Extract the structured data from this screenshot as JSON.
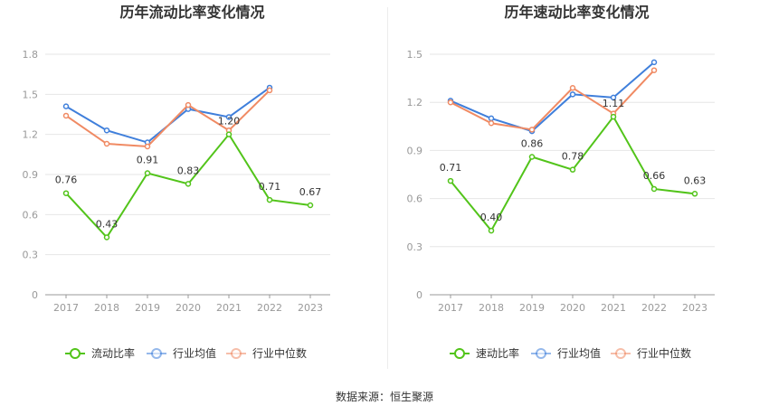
{
  "footer": {
    "source": "数据来源：恒生聚源"
  },
  "legend_labels": [],
  "chart_data": [
    {
      "type": "line",
      "title": "历年流动比率变化情况",
      "xlabel": "",
      "ylabel": "",
      "categories": [
        "2017",
        "2018",
        "2019",
        "2020",
        "2021",
        "2022",
        "2023"
      ],
      "ylim": [
        0,
        1.8
      ],
      "yticks": [
        "0",
        "0.3",
        "0.6",
        "0.9",
        "1.2",
        "1.5",
        "1.8"
      ],
      "grid": true,
      "legend_position": "bottom",
      "series": [
        {
          "name": "流动比率",
          "color": "#52c41a",
          "labeled": true,
          "values": [
            0.76,
            0.43,
            0.91,
            0.83,
            1.2,
            0.71,
            0.67
          ],
          "labels": [
            "0.76",
            "0.43",
            "0.91",
            "0.83",
            "1.20",
            "0.71",
            "0.67"
          ]
        },
        {
          "name": "行业均值",
          "color": "#3f7fdb",
          "labeled": false,
          "values": [
            1.41,
            1.23,
            1.14,
            1.39,
            1.33,
            1.55,
            null
          ]
        },
        {
          "name": "行业中位数",
          "color": "#f08a63",
          "labeled": false,
          "values": [
            1.34,
            1.13,
            1.11,
            1.42,
            1.23,
            1.53,
            null
          ]
        }
      ]
    },
    {
      "type": "line",
      "title": "历年速动比率变化情况",
      "xlabel": "",
      "ylabel": "",
      "categories": [
        "2017",
        "2018",
        "2019",
        "2020",
        "2021",
        "2022",
        "2023"
      ],
      "ylim": [
        0,
        1.5
      ],
      "yticks": [
        "0",
        "0.3",
        "0.6",
        "0.9",
        "1.2",
        "1.5"
      ],
      "grid": true,
      "legend_position": "bottom",
      "series": [
        {
          "name": "速动比率",
          "color": "#52c41a",
          "labeled": true,
          "values": [
            0.71,
            0.4,
            0.86,
            0.78,
            1.11,
            0.66,
            0.63
          ],
          "labels": [
            "0.71",
            "0.40",
            "0.86",
            "0.78",
            "1.11",
            "0.66",
            "0.63"
          ]
        },
        {
          "name": "行业均值",
          "color": "#3f7fdb",
          "labeled": false,
          "values": [
            1.21,
            1.1,
            1.02,
            1.25,
            1.23,
            1.45,
            null
          ]
        },
        {
          "name": "行业中位数",
          "color": "#f08a63",
          "labeled": false,
          "values": [
            1.2,
            1.07,
            1.03,
            1.29,
            1.13,
            1.4,
            null
          ]
        }
      ]
    }
  ]
}
